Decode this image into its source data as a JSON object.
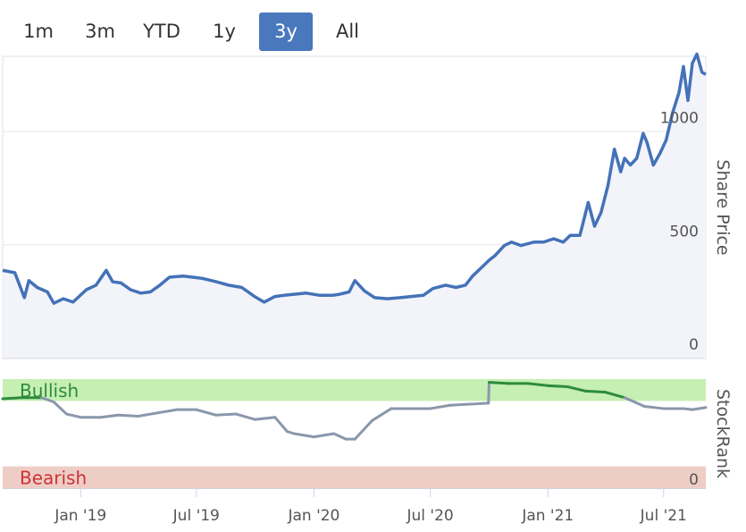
{
  "range_selector": {
    "buttons": [
      "1m",
      "3m",
      "YTD",
      "1y",
      "3y",
      "All"
    ],
    "selected": "3y",
    "active_color": "#4a78bd"
  },
  "chart_data": [
    {
      "type": "line",
      "ylabel": "Share Price",
      "y_ticks": [
        0,
        500,
        1000
      ],
      "ylim": [
        0,
        1330
      ],
      "xlim": [
        "2018-09-01",
        "2021-09-05"
      ],
      "x_ticks": [
        "Jan '19",
        "Jul '19",
        "Jan '20",
        "Jul '20",
        "Jan '21",
        "Jul '21"
      ],
      "grid": true,
      "line_color": "#4472b8",
      "area_color": "#f3f4fa",
      "series": [
        {
          "x": [
            "2018-09-01",
            "2018-09-20",
            "2018-10-05",
            "2018-10-12",
            "2018-10-25",
            "2018-11-10",
            "2018-11-20",
            "2018-12-05",
            "2018-12-20",
            "2019-01-10",
            "2019-01-25",
            "2019-02-10",
            "2019-02-20",
            "2019-03-05",
            "2019-03-20",
            "2019-04-05",
            "2019-04-20",
            "2019-05-05",
            "2019-05-20",
            "2019-06-10",
            "2019-06-25",
            "2019-07-10",
            "2019-08-01",
            "2019-08-20",
            "2019-09-10",
            "2019-09-30",
            "2019-10-15",
            "2019-11-01",
            "2019-11-15",
            "2019-12-01",
            "2019-12-20",
            "2020-01-10",
            "2020-01-30",
            "2020-02-10",
            "2020-02-25",
            "2020-03-05",
            "2020-03-20",
            "2020-04-05",
            "2020-04-25",
            "2020-05-15",
            "2020-06-01",
            "2020-06-20",
            "2020-07-05",
            "2020-07-25",
            "2020-08-10",
            "2020-08-25",
            "2020-09-05",
            "2020-09-20",
            "2020-10-01",
            "2020-10-10",
            "2020-10-25",
            "2020-11-05",
            "2020-11-20",
            "2020-12-10",
            "2020-12-25",
            "2021-01-10",
            "2021-01-25",
            "2021-02-05",
            "2021-02-20",
            "2021-03-05",
            "2021-03-15",
            "2021-03-25",
            "2021-04-05",
            "2021-04-15",
            "2021-04-25",
            "2021-05-01",
            "2021-05-10",
            "2021-05-20",
            "2021-05-30",
            "2021-06-05",
            "2021-06-15",
            "2021-06-25",
            "2021-07-05",
            "2021-07-15",
            "2021-07-25",
            "2021-08-01",
            "2021-08-08",
            "2021-08-15",
            "2021-08-22",
            "2021-08-30",
            "2021-09-05"
          ],
          "values": [
            385,
            375,
            265,
            340,
            310,
            290,
            240,
            260,
            245,
            300,
            320,
            385,
            335,
            330,
            300,
            285,
            290,
            320,
            355,
            360,
            355,
            350,
            335,
            320,
            310,
            270,
            245,
            270,
            275,
            280,
            285,
            275,
            275,
            280,
            290,
            340,
            295,
            265,
            260,
            265,
            270,
            275,
            305,
            320,
            310,
            320,
            360,
            400,
            430,
            450,
            495,
            510,
            495,
            510,
            510,
            525,
            510,
            540,
            540,
            685,
            580,
            640,
            760,
            920,
            820,
            880,
            850,
            880,
            990,
            950,
            850,
            900,
            960,
            1080,
            1170,
            1285,
            1135,
            1300,
            1340,
            1260,
            1250
          ]
        }
      ]
    },
    {
      "type": "line",
      "ylabel": "StockRank",
      "ylim": [
        0,
        100
      ],
      "y_ticks": [
        0
      ],
      "zones": [
        {
          "label": "Bullish",
          "from": 80,
          "to": 100,
          "color": "#c5efb3",
          "text_color": "#2e8b3d"
        },
        {
          "label": "Bearish",
          "from": 0,
          "to": 20,
          "color": "#efcdc7",
          "text_color": "#cc3333"
        }
      ],
      "line_color": "#8a97ab",
      "highlight_color": "#2e8b3d",
      "highlight_above": 80,
      "series": [
        {
          "x": [
            "2018-09-01",
            "2018-10-01",
            "2018-11-01",
            "2018-11-20",
            "2018-12-10",
            "2019-01-01",
            "2019-02-01",
            "2019-03-01",
            "2019-04-01",
            "2019-05-01",
            "2019-06-01",
            "2019-07-01",
            "2019-08-01",
            "2019-09-01",
            "2019-10-01",
            "2019-11-01",
            "2019-11-20",
            "2019-12-01",
            "2020-01-01",
            "2020-02-01",
            "2020-02-20",
            "2020-03-05",
            "2020-04-01",
            "2020-05-01",
            "2020-06-01",
            "2020-07-01",
            "2020-08-01",
            "2020-09-01",
            "2020-09-30",
            "2020-10-01",
            "2020-11-01",
            "2020-12-01",
            "2021-01-01",
            "2021-02-01",
            "2021-03-01",
            "2021-04-01",
            "2021-05-01",
            "2021-06-01",
            "2021-07-01",
            "2021-08-01",
            "2021-08-15",
            "2021-09-05"
          ],
          "values": [
            82,
            83,
            83,
            79,
            68,
            65,
            65,
            67,
            66,
            69,
            72,
            72,
            67,
            68,
            63,
            65,
            52,
            50,
            47,
            50,
            45,
            45,
            62,
            73,
            73,
            73,
            76,
            77,
            78,
            97,
            96,
            96,
            94,
            93,
            89,
            88,
            83,
            75,
            73,
            73,
            72,
            74
          ]
        }
      ]
    }
  ]
}
